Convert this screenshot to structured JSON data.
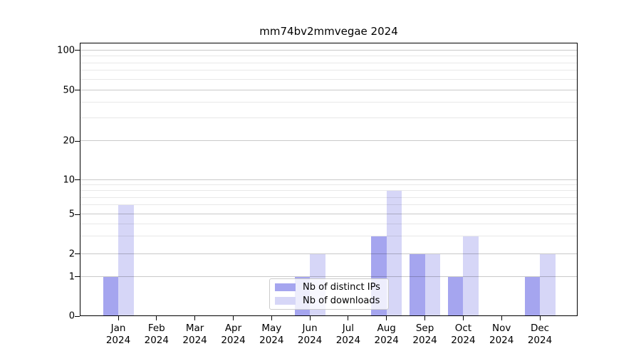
{
  "chart": {
    "title": "mm74bv2mmvegae 2024",
    "background_color": "#ffffff",
    "legend": {
      "position": "lower center",
      "items": [
        {
          "label": "Nb of distinct IPs",
          "color": "#a5a5ef"
        },
        {
          "label": "Nb of downloads",
          "color": "#d6d6f7"
        }
      ]
    }
  },
  "chart_data": {
    "type": "bar",
    "title": "mm74bv2mmvegae 2024",
    "categories": [
      "Jan",
      "Feb",
      "Mar",
      "Apr",
      "May",
      "Jun",
      "Jul",
      "Aug",
      "Sep",
      "Oct",
      "Nov",
      "Dec"
    ],
    "year": "2024",
    "series": [
      {
        "name": "Nb of distinct IPs",
        "color": "#a5a5ef",
        "values": [
          1,
          0,
          0,
          0,
          0,
          1,
          0,
          3,
          2,
          1,
          0,
          1
        ]
      },
      {
        "name": "Nb of downloads",
        "color": "#d6d6f7",
        "values": [
          6,
          0,
          0,
          0,
          0,
          2,
          0,
          8,
          2,
          3,
          0,
          2
        ]
      }
    ],
    "xlabel": "",
    "ylabel": "",
    "yticks": [
      0,
      1,
      2,
      5,
      10,
      20,
      50,
      100
    ],
    "yscale": "symlog",
    "ylim": [
      0,
      110
    ],
    "grid": "major and minor horizontal gridlines",
    "legend_position": "lower center"
  }
}
